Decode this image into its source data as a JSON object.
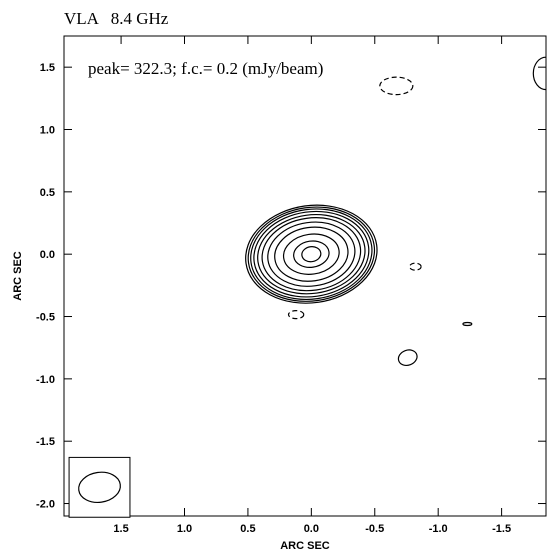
{
  "chart_data": {
    "type": "contour",
    "title": "VLA   8.4 GHz",
    "annotation": "peak= 322.3; f.c.= 0.2 (mJy/beam)",
    "xlabel": "ARC SEC",
    "ylabel": "ARC SEC",
    "xlim": [
      1.95,
      -1.85
    ],
    "ylim": [
      -2.1,
      1.75
    ],
    "x_ticks": [
      1.5,
      1.0,
      0.5,
      0.0,
      -0.5,
      -1.0,
      -1.5
    ],
    "x_tick_labels": [
      "1.5",
      "1.0",
      "0.5",
      "0.0",
      "-0.5",
      "-1.0",
      "-1.5"
    ],
    "y_ticks": [
      1.5,
      1.0,
      0.5,
      0.0,
      -0.5,
      -1.0,
      -1.5,
      -2.0
    ],
    "y_tick_labels": [
      "1.5",
      "1.0",
      "0.5",
      "0.0",
      "-0.5",
      "-1.0",
      "-1.5",
      "-2.0"
    ],
    "peak_mJy_per_beam": 322.3,
    "first_contour_mJy_per_beam": 0.2,
    "main_source": {
      "x": 0.0,
      "y": 0.0,
      "angle_deg": -8,
      "contours": [
        {
          "a": 0.52,
          "b": 0.39
        },
        {
          "a": 0.5,
          "b": 0.375
        },
        {
          "a": 0.48,
          "b": 0.36
        },
        {
          "a": 0.455,
          "b": 0.34
        },
        {
          "a": 0.425,
          "b": 0.315
        },
        {
          "a": 0.39,
          "b": 0.29
        },
        {
          "a": 0.345,
          "b": 0.255
        },
        {
          "a": 0.29,
          "b": 0.215
        },
        {
          "a": 0.22,
          "b": 0.16
        },
        {
          "a": 0.14,
          "b": 0.105
        },
        {
          "a": 0.075,
          "b": 0.06
        }
      ]
    },
    "minor_features": [
      {
        "x": -0.67,
        "y": 1.35,
        "a": 0.13,
        "b": 0.07,
        "angle_deg": 0,
        "dashed": true
      },
      {
        "x": -0.82,
        "y": -0.1,
        "a": 0.045,
        "b": 0.028,
        "angle_deg": 0,
        "dashed": true
      },
      {
        "x": 0.12,
        "y": -0.485,
        "a": 0.06,
        "b": 0.032,
        "angle_deg": 0,
        "dashed": true
      },
      {
        "x": -1.23,
        "y": -0.56,
        "a": 0.035,
        "b": 0.012,
        "angle_deg": 0,
        "dashed": false
      },
      {
        "x": -0.76,
        "y": -0.83,
        "a": 0.075,
        "b": 0.06,
        "angle_deg": -20,
        "dashed": false
      },
      {
        "x": -1.85,
        "y": 1.45,
        "a": 0.1,
        "b": 0.13,
        "angle_deg": 0,
        "dashed": false
      }
    ],
    "beam": {
      "x": 1.67,
      "y": -1.87,
      "a": 0.165,
      "b": 0.12,
      "angle_deg": -8,
      "box_halfwidth": 0.24,
      "box_halfheight": 0.24
    }
  }
}
